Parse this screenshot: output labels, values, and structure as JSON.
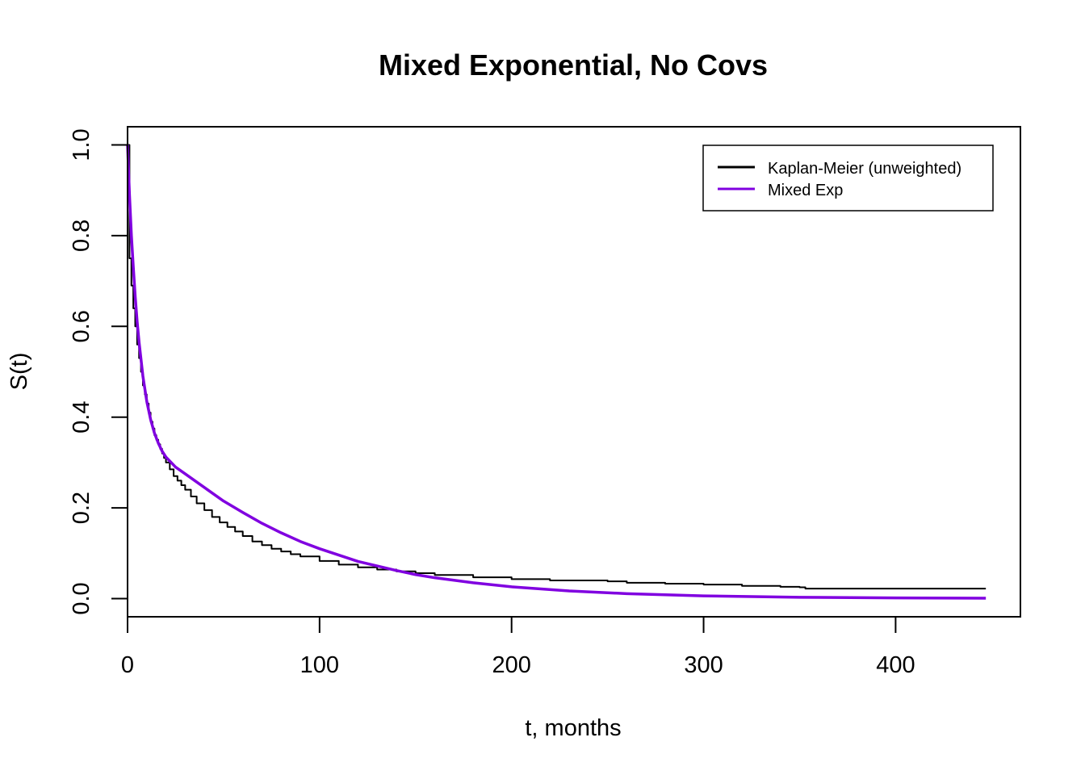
{
  "chart_data": {
    "type": "line",
    "title": "Mixed Exponential, No Covs",
    "xlabel": "t, months",
    "ylabel": "S(t)",
    "xlim": [
      0,
      465
    ],
    "ylim": [
      -0.04,
      1.04
    ],
    "x_ticks": [
      0,
      100,
      200,
      300,
      400
    ],
    "y_ticks": [
      0.0,
      0.2,
      0.4,
      0.6,
      0.8,
      1.0
    ],
    "x_tick_labels": [
      "0",
      "100",
      "200",
      "300",
      "400"
    ],
    "y_tick_labels": [
      "0.0",
      "0.2",
      "0.4",
      "0.6",
      "0.8",
      "1.0"
    ],
    "legend_position": "top-right",
    "series": [
      {
        "name": "Kaplan-Meier (unweighted)",
        "color": "#000000",
        "style": "step",
        "x": [
          0,
          1,
          2,
          3,
          4,
          5,
          6,
          7,
          8,
          9,
          10,
          11,
          12,
          13,
          14,
          15,
          16,
          17,
          18,
          19,
          20,
          22,
          24,
          26,
          28,
          30,
          33,
          36,
          40,
          44,
          48,
          52,
          56,
          60,
          65,
          70,
          75,
          80,
          85,
          90,
          100,
          110,
          120,
          130,
          140,
          150,
          160,
          180,
          200,
          220,
          250,
          260,
          280,
          300,
          320,
          340,
          350,
          353,
          447
        ],
        "y": [
          1.0,
          0.75,
          0.69,
          0.64,
          0.6,
          0.56,
          0.53,
          0.5,
          0.47,
          0.45,
          0.43,
          0.41,
          0.39,
          0.375,
          0.36,
          0.35,
          0.34,
          0.33,
          0.32,
          0.31,
          0.3,
          0.285,
          0.27,
          0.26,
          0.25,
          0.24,
          0.225,
          0.21,
          0.195,
          0.18,
          0.168,
          0.158,
          0.148,
          0.138,
          0.126,
          0.118,
          0.11,
          0.104,
          0.098,
          0.093,
          0.083,
          0.075,
          0.069,
          0.064,
          0.06,
          0.056,
          0.052,
          0.047,
          0.043,
          0.04,
          0.038,
          0.035,
          0.033,
          0.031,
          0.028,
          0.026,
          0.025,
          0.022,
          0.022
        ]
      },
      {
        "name": "Mixed Exp",
        "color": "#8000e0",
        "style": "smooth",
        "x": [
          0,
          1,
          2,
          3,
          4,
          5,
          6,
          8,
          10,
          12,
          14,
          16,
          18,
          20,
          25,
          30,
          40,
          50,
          60,
          70,
          80,
          90,
          100,
          120,
          140,
          150,
          160,
          180,
          200,
          230,
          260,
          300,
          350,
          400,
          447
        ],
        "y": [
          1.0,
          0.89,
          0.8,
          0.73,
          0.665,
          0.61,
          0.565,
          0.49,
          0.435,
          0.395,
          0.365,
          0.343,
          0.325,
          0.312,
          0.29,
          0.275,
          0.245,
          0.215,
          0.19,
          0.166,
          0.145,
          0.126,
          0.11,
          0.082,
          0.062,
          0.053,
          0.046,
          0.035,
          0.026,
          0.017,
          0.011,
          0.006,
          0.003,
          0.0015,
          0.001
        ]
      }
    ]
  }
}
